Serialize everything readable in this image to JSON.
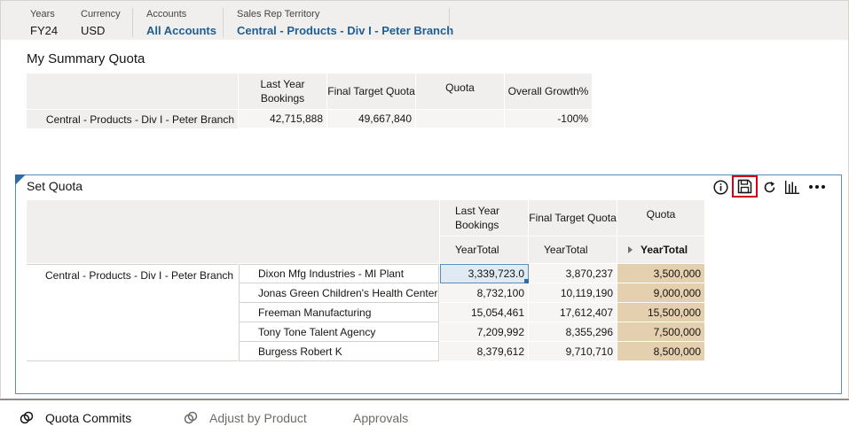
{
  "pov": [
    {
      "label": "Years",
      "value": "FY24",
      "link": false
    },
    {
      "label": "Currency",
      "value": "USD",
      "link": false
    },
    {
      "label": "Accounts",
      "value": "All Accounts",
      "link": true
    },
    {
      "label": "Sales Rep Territory",
      "value": "Central - Products - Div I - Peter Branch",
      "link": true
    }
  ],
  "summary": {
    "title": "My Summary Quota",
    "columns": [
      "Last Year Bookings",
      "Final Target Quota",
      "Quota",
      "Overall Growth%"
    ],
    "row_label": "Central - Products - Div I - Peter Branch",
    "values": [
      "42,715,888",
      "49,667,840",
      "",
      "-100%"
    ]
  },
  "set_quota": {
    "title": "Set Quota",
    "columns": [
      "Last Year Bookings",
      "Final Target Quota",
      "Quota"
    ],
    "subheaders": [
      "YearTotal",
      "YearTotal",
      "YearTotal"
    ],
    "territory": "Central - Products - Div I - Peter Branch",
    "rows": [
      {
        "account": "Dixon Mfg Industries - MI Plant",
        "ly": "3,339,723.0",
        "ftq": "3,870,237",
        "quota": "3,500,000"
      },
      {
        "account": "Jonas Green Children's Health Center",
        "ly": "8,732,100",
        "ftq": "10,119,190",
        "quota": "9,000,000"
      },
      {
        "account": "Freeman Manufacturing",
        "ly": "15,054,461",
        "ftq": "17,612,407",
        "quota": "15,500,000"
      },
      {
        "account": "Tony Tone Talent Agency",
        "ly": "7,209,992",
        "ftq": "8,355,296",
        "quota": "7,500,000"
      },
      {
        "account": "Burgess Robert K",
        "ly": "8,379,612",
        "ftq": "9,710,710",
        "quota": "8,500,000"
      }
    ]
  },
  "toolbar": [
    "info-icon",
    "save-icon",
    "refresh-icon",
    "chart-icon",
    "more-icon"
  ],
  "tabs": [
    {
      "label": "Quota Commits",
      "active": true
    },
    {
      "label": "Adjust by Product",
      "active": false
    },
    {
      "label": "Approvals",
      "active": false
    }
  ],
  "colors": {
    "link": "#1f5e93",
    "quota_cell": "#e4cfae",
    "highlight": "#d0021b",
    "panel_border": "#5b8db8"
  }
}
